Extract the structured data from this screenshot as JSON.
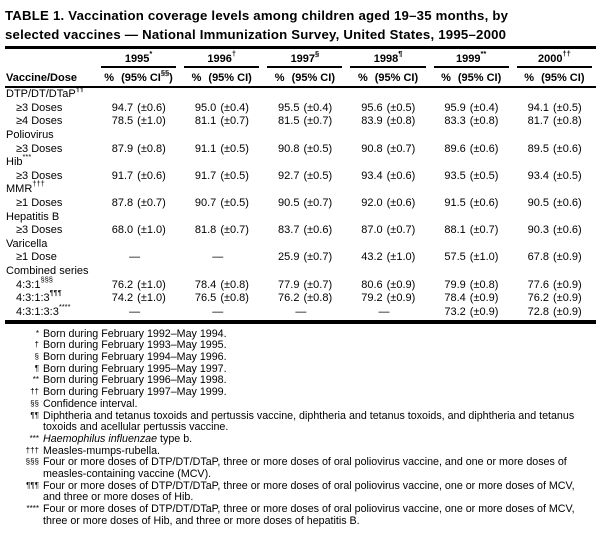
{
  "title": {
    "line1": "TABLE 1. Vaccination coverage levels among children aged 19–35 months, by",
    "line2": "selected vaccines — National Immunization Survey, United States, 1995–2000"
  },
  "table": {
    "corner_label": "Vaccine/Dose",
    "dash": "—",
    "years": [
      {
        "label": "1995",
        "marker": "*",
        "pct": "%",
        "ci": "95% CI",
        "ci_marker": "§§"
      },
      {
        "label": "1996",
        "marker": "†",
        "pct": "%",
        "ci": "95% CI",
        "ci_marker": ""
      },
      {
        "label": "1997",
        "marker": "§",
        "pct": "%",
        "ci": "95% CI",
        "ci_marker": ""
      },
      {
        "label": "1998",
        "marker": "¶",
        "pct": "%",
        "ci": "95% CI",
        "ci_marker": ""
      },
      {
        "label": "1999",
        "marker": "**",
        "pct": "%",
        "ci": "95% CI",
        "ci_marker": ""
      },
      {
        "label": "2000",
        "marker": "††",
        "pct": "%",
        "ci": "95% CI",
        "ci_marker": ""
      }
    ],
    "rows": [
      {
        "type": "section",
        "label": "DTP/DT/DTaP",
        "marker": "¶¶"
      },
      {
        "type": "data",
        "label": "≥3 Doses",
        "marker": "",
        "cells": [
          [
            "94.7",
            "(±0.6)"
          ],
          [
            "95.0",
            "(±0.4)"
          ],
          [
            "95.5",
            "(±0.4)"
          ],
          [
            "95.6",
            "(±0.5)"
          ],
          [
            "95.9",
            "(±0.4)"
          ],
          [
            "94.1",
            "(±0.5)"
          ]
        ]
      },
      {
        "type": "data",
        "label": "≥4 Doses",
        "marker": "",
        "cells": [
          [
            "78.5",
            "(±1.0)"
          ],
          [
            "81.1",
            "(±0.7)"
          ],
          [
            "81.5",
            "(±0.7)"
          ],
          [
            "83.9",
            "(±0.8)"
          ],
          [
            "83.3",
            "(±0.8)"
          ],
          [
            "81.7",
            "(±0.8)"
          ]
        ]
      },
      {
        "type": "section",
        "label": "Poliovirus",
        "marker": ""
      },
      {
        "type": "data",
        "label": "≥3 Doses",
        "marker": "",
        "cells": [
          [
            "87.9",
            "(±0.8)"
          ],
          [
            "91.1",
            "(±0.5)"
          ],
          [
            "90.8",
            "(±0.5)"
          ],
          [
            "90.8",
            "(±0.7)"
          ],
          [
            "89.6",
            "(±0.6)"
          ],
          [
            "89.5",
            "(±0.6)"
          ]
        ]
      },
      {
        "type": "section",
        "label": "Hib",
        "marker": "***"
      },
      {
        "type": "data",
        "label": "≥3 Doses",
        "marker": "",
        "cells": [
          [
            "91.7",
            "(±0.6)"
          ],
          [
            "91.7",
            "(±0.5)"
          ],
          [
            "92.7",
            "(±0.5)"
          ],
          [
            "93.4",
            "(±0.6)"
          ],
          [
            "93.5",
            "(±0.5)"
          ],
          [
            "93.4",
            "(±0.5)"
          ]
        ]
      },
      {
        "type": "section",
        "label": "MMR",
        "marker": "†††"
      },
      {
        "type": "data",
        "label": "≥1 Doses",
        "marker": "",
        "cells": [
          [
            "87.8",
            "(±0.7)"
          ],
          [
            "90.7",
            "(±0.5)"
          ],
          [
            "90.5",
            "(±0.7)"
          ],
          [
            "92.0",
            "(±0.6)"
          ],
          [
            "91.5",
            "(±0.6)"
          ],
          [
            "90.5",
            "(±0.6)"
          ]
        ]
      },
      {
        "type": "section",
        "label": "Hepatitis B",
        "marker": ""
      },
      {
        "type": "data",
        "label": "≥3 Doses",
        "marker": "",
        "cells": [
          [
            "68.0",
            "(±1.0)"
          ],
          [
            "81.8",
            "(±0.7)"
          ],
          [
            "83.7",
            "(±0.6)"
          ],
          [
            "87.0",
            "(±0.7)"
          ],
          [
            "88.1",
            "(±0.7)"
          ],
          [
            "90.3",
            "(±0.6)"
          ]
        ]
      },
      {
        "type": "section",
        "label": "Varicella",
        "marker": ""
      },
      {
        "type": "data",
        "label": "≥1 Dose",
        "marker": "",
        "cells": [
          null,
          null,
          [
            "25.9",
            "(±0.7)"
          ],
          [
            "43.2",
            "(±1.0)"
          ],
          [
            "57.5",
            "(±1.0)"
          ],
          [
            "67.8",
            "(±0.9)"
          ]
        ]
      },
      {
        "type": "section",
        "label": "Combined series",
        "marker": ""
      },
      {
        "type": "data",
        "label": "4:3:1",
        "marker": "§§§",
        "cells": [
          [
            "76.2",
            "(±1.0)"
          ],
          [
            "78.4",
            "(±0.8)"
          ],
          [
            "77.9",
            "(±0.7)"
          ],
          [
            "80.6",
            "(±0.9)"
          ],
          [
            "79.9",
            "(±0.8)"
          ],
          [
            "77.6",
            "(±0.9)"
          ]
        ]
      },
      {
        "type": "data",
        "label": "4:3:1:3",
        "marker": "¶¶¶",
        "cells": [
          [
            "74.2",
            "(±1.0)"
          ],
          [
            "76.5",
            "(±0.8)"
          ],
          [
            "76.2",
            "(±0.8)"
          ],
          [
            "79.2",
            "(±0.9)"
          ],
          [
            "78.4",
            "(±0.9)"
          ],
          [
            "76.2",
            "(±0.9)"
          ]
        ]
      },
      {
        "type": "data",
        "label": "4:3:1:3:3",
        "marker": "****",
        "cells": [
          null,
          null,
          null,
          null,
          [
            "73.2",
            "(±0.9)"
          ],
          [
            "72.8",
            "(±0.9)"
          ]
        ]
      }
    ]
  },
  "footnotes": [
    {
      "marker": "*",
      "parts": [
        {
          "t": "Born during February 1992–May 1994."
        }
      ]
    },
    {
      "marker": "†",
      "parts": [
        {
          "t": "Born during February 1993–May 1995."
        }
      ]
    },
    {
      "marker": "§",
      "parts": [
        {
          "t": "Born during February 1994–May 1996."
        }
      ]
    },
    {
      "marker": "¶",
      "parts": [
        {
          "t": "Born during February 1995–May 1997."
        }
      ]
    },
    {
      "marker": "**",
      "parts": [
        {
          "t": "Born during February 1996–May 1998."
        }
      ]
    },
    {
      "marker": "††",
      "parts": [
        {
          "t": "Born during February 1997–May 1999."
        }
      ]
    },
    {
      "marker": "§§",
      "parts": [
        {
          "t": "Confidence interval."
        }
      ]
    },
    {
      "marker": "¶¶",
      "parts": [
        {
          "t": "Diphtheria and tetanus toxoids and pertussis vaccine, diphtheria and tetanus toxoids, and diphtheria and tetanus toxoids and acellular pertussis vaccine."
        }
      ]
    },
    {
      "marker": "***",
      "parts": [
        {
          "t": "Haemophilus influenzae",
          "i": true
        },
        {
          "t": " type b."
        }
      ]
    },
    {
      "marker": "†††",
      "parts": [
        {
          "t": "Measles-mumps-rubella."
        }
      ]
    },
    {
      "marker": "§§§",
      "parts": [
        {
          "t": "Four or more doses of DTP/DT/DTaP, three or more doses of oral poliovirus vaccine, and one or more doses of measles-containing vaccine (MCV)."
        }
      ]
    },
    {
      "marker": "¶¶¶",
      "parts": [
        {
          "t": "Four or more doses of DTP/DT/DTaP, three or more doses of oral poliovirus vaccine, one or more doses of MCV, and three or more doses of Hib."
        }
      ]
    },
    {
      "marker": "****",
      "parts": [
        {
          "t": "Four or more doses of DTP/DT/DTaP, three or more doses of oral poliovirus vaccine, one or more doses of MCV, three or more doses of Hib, and three or more doses of hepatitis B."
        }
      ]
    }
  ]
}
